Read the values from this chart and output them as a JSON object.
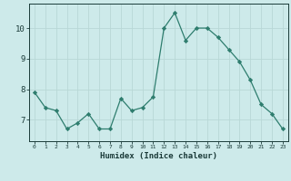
{
  "x": [
    0,
    1,
    2,
    3,
    4,
    5,
    6,
    7,
    8,
    9,
    10,
    11,
    12,
    13,
    14,
    15,
    16,
    17,
    18,
    19,
    20,
    21,
    22,
    23
  ],
  "y": [
    7.9,
    7.4,
    7.3,
    6.7,
    6.9,
    7.2,
    6.7,
    6.7,
    7.7,
    7.3,
    7.4,
    7.75,
    10.0,
    10.5,
    9.6,
    10.0,
    10.0,
    9.7,
    9.3,
    8.9,
    8.3,
    7.5,
    7.2,
    6.7
  ],
  "line_color": "#2e7d6e",
  "marker_color": "#2e7d6e",
  "bg_color": "#cdeaea",
  "grid_color": "#b8d8d6",
  "xlabel": "Humidex (Indice chaleur)",
  "tick_color": "#1a3a38",
  "yticks": [
    7,
    8,
    9,
    10
  ],
  "ylim": [
    6.3,
    10.8
  ],
  "xlim": [
    -0.5,
    23.5
  ]
}
